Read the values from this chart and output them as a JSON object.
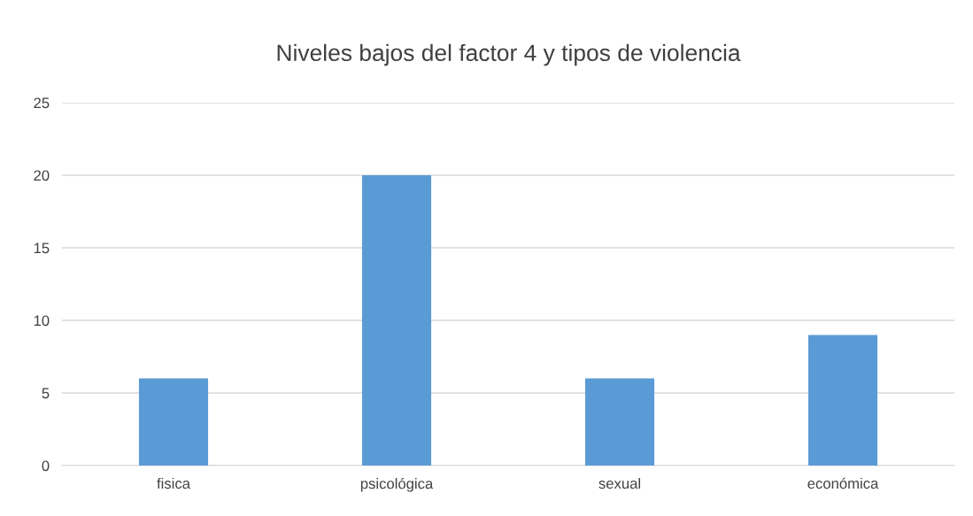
{
  "chart_data": {
    "type": "bar",
    "title": "Niveles bajos del factor 4 y tipos de violencia",
    "categories": [
      "fisica",
      "psicológica",
      "sexual",
      "económica"
    ],
    "values": [
      6,
      20,
      6,
      9
    ],
    "color": "#5b9bd5",
    "ylim": [
      0,
      25
    ],
    "yticks": [
      0,
      5,
      10,
      15,
      20,
      25
    ],
    "grid": "y",
    "legend": false
  }
}
